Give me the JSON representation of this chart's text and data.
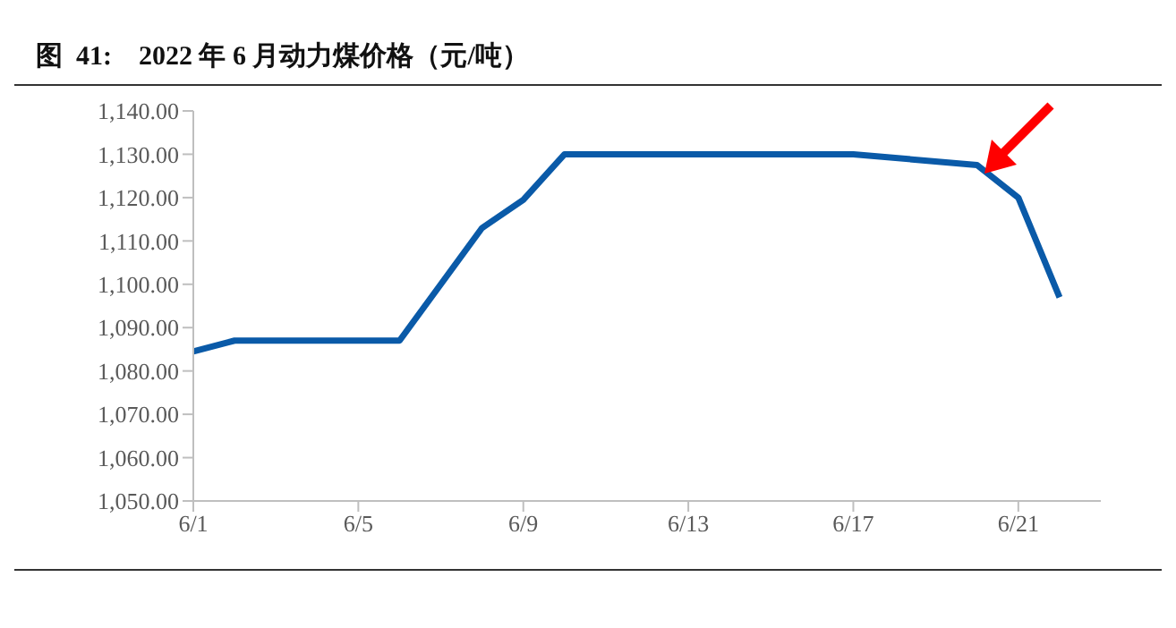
{
  "chart_data": {
    "type": "line",
    "title": "图  41:    2022 年 6 月动力煤价格（元/吨）",
    "x": [
      "--06-01",
      "--06-02",
      "--06-06",
      "--06-07",
      "--06-08",
      "--06-09",
      "--06-10",
      "--06-17",
      "--06-20",
      "--06-21",
      "--06-22"
    ],
    "series": [
      {
        "color": "#0a5aa8",
        "values": [
          1084.5,
          1087,
          1087,
          1100,
          1113,
          1119.5,
          1130,
          1130,
          1127.5,
          1120,
          1097
        ]
      }
    ],
    "xlim": [
      "--06-01",
      "--06-23"
    ],
    "xticks": [
      {
        "value": "--06-01",
        "label": "6/1"
      },
      {
        "value": "--06-05",
        "label": "6/5"
      },
      {
        "value": "--06-09",
        "label": "6/9"
      },
      {
        "value": "--06-13",
        "label": "6/13"
      },
      {
        "value": "--06-17",
        "label": "6/17"
      },
      {
        "value": "--06-21",
        "label": "6/21"
      }
    ],
    "ylim": [
      1050,
      1140
    ],
    "yticks": [
      {
        "value": 1050,
        "label": "1,050.00"
      },
      {
        "value": 1060,
        "label": "1,060.00"
      },
      {
        "value": 1070,
        "label": "1,070.00"
      },
      {
        "value": 1080,
        "label": "1,080.00"
      },
      {
        "value": 1090,
        "label": "1,090.00"
      },
      {
        "value": 1100,
        "label": "1,100.00"
      },
      {
        "value": 1110,
        "label": "1,110.00"
      },
      {
        "value": 1120,
        "label": "1,120.00"
      },
      {
        "value": 1130,
        "label": "1,130.00"
      },
      {
        "value": 1140,
        "label": "1,140.00"
      }
    ],
    "grid": false,
    "legend": false,
    "marker": "none",
    "line_style": "solid"
  }
}
